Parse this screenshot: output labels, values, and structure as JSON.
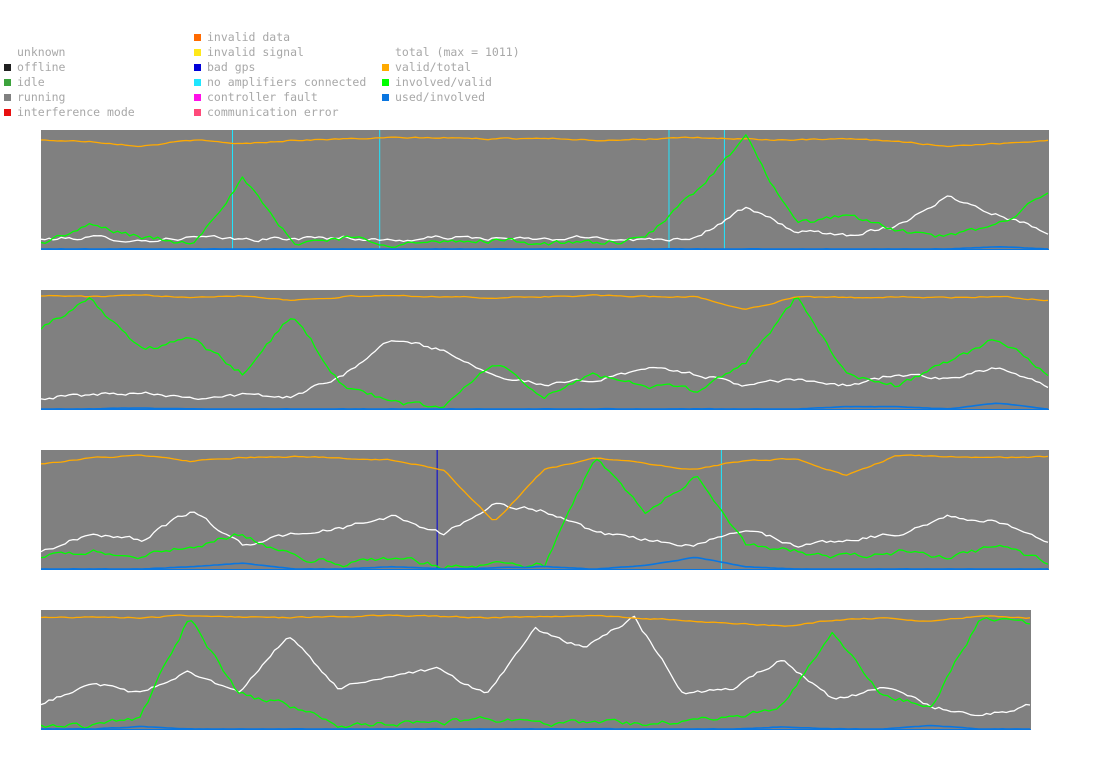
{
  "legend": {
    "status": {
      "items": [
        {
          "label": "unknown",
          "color": ""
        },
        {
          "label": "offline",
          "color": "#202020"
        },
        {
          "label": "idle",
          "color": "#3ca33c"
        },
        {
          "label": "running",
          "color": "#808080"
        },
        {
          "label": "interference mode",
          "color": "#e81010"
        }
      ]
    },
    "errors": {
      "items": [
        {
          "label": "invalid data",
          "color": "#ff6a00"
        },
        {
          "label": "invalid signal",
          "color": "#ffe81a"
        },
        {
          "label": "bad gps",
          "color": "#0000d8"
        },
        {
          "label": "no amplifiers connected",
          "color": "#1ee6ff"
        },
        {
          "label": "controller fault",
          "color": "#ff10e8"
        },
        {
          "label": "communication error",
          "color": "#ff4a7a"
        }
      ]
    },
    "lines": {
      "items": [
        {
          "label": "total (max = 1011)",
          "color": ""
        },
        {
          "label": "valid/total",
          "color": "#ffaa00"
        },
        {
          "label": "involved/valid",
          "color": "#00ff00"
        },
        {
          "label": "used/involved",
          "color": "#0a76e0"
        }
      ]
    }
  },
  "colors": {
    "running": "#808080",
    "total": "#ffffff",
    "valid_total": "#ffaa00",
    "involved_valid": "#00ff00",
    "used_involved": "#0a76e0",
    "no_amplifiers": "#1ee6ff",
    "bad_gps": "#0000d8"
  },
  "chart_data": [
    {
      "type": "line",
      "ylim": [
        0,
        1
      ],
      "grid": false,
      "x": [
        0,
        0.05,
        0.1,
        0.15,
        0.2,
        0.25,
        0.3,
        0.35,
        0.4,
        0.45,
        0.5,
        0.55,
        0.6,
        0.65,
        0.7,
        0.75,
        0.8,
        0.85,
        0.9,
        0.95,
        1.0
      ],
      "series": [
        {
          "name": "total (max = 1011)",
          "values": [
            0.08,
            0.1,
            0.07,
            0.1,
            0.08,
            0.09,
            0.1,
            0.07,
            0.1,
            0.09,
            0.08,
            0.1,
            0.08,
            0.1,
            0.35,
            0.15,
            0.12,
            0.2,
            0.45,
            0.3,
            0.15
          ]
        },
        {
          "name": "valid/total",
          "values": [
            0.93,
            0.92,
            0.88,
            0.93,
            0.9,
            0.93,
            0.94,
            0.95,
            0.95,
            0.94,
            0.95,
            0.93,
            0.94,
            0.95,
            0.94,
            0.93,
            0.94,
            0.92,
            0.88,
            0.9,
            0.93
          ]
        },
        {
          "name": "involved/valid",
          "values": [
            0.05,
            0.2,
            0.1,
            0.05,
            0.6,
            0.05,
            0.1,
            0.05,
            0.05,
            0.08,
            0.05,
            0.05,
            0.08,
            0.5,
            0.95,
            0.2,
            0.3,
            0.15,
            0.1,
            0.2,
            0.5
          ]
        },
        {
          "name": "used/involved",
          "values": [
            0,
            0,
            0,
            0,
            0,
            0,
            0,
            0,
            0,
            0,
            0,
            0,
            0,
            0,
            0,
            0,
            0,
            0,
            0,
            0.02,
            0
          ]
        }
      ],
      "events": [
        {
          "type": "no amplifiers connected",
          "x": 0.19
        },
        {
          "type": "no amplifiers connected",
          "x": 0.336
        },
        {
          "type": "no amplifiers connected",
          "x": 0.623
        },
        {
          "type": "no amplifiers connected",
          "x": 0.678
        }
      ]
    },
    {
      "type": "line",
      "ylim": [
        0,
        1
      ],
      "grid": false,
      "x": [
        0,
        0.05,
        0.1,
        0.15,
        0.2,
        0.25,
        0.3,
        0.35,
        0.4,
        0.45,
        0.5,
        0.55,
        0.6,
        0.65,
        0.7,
        0.75,
        0.8,
        0.85,
        0.9,
        0.95,
        1.0
      ],
      "series": [
        {
          "name": "total (max = 1011)",
          "values": [
            0.1,
            0.12,
            0.15,
            0.1,
            0.12,
            0.1,
            0.3,
            0.6,
            0.5,
            0.3,
            0.2,
            0.25,
            0.35,
            0.3,
            0.2,
            0.25,
            0.2,
            0.3,
            0.25,
            0.35,
            0.2
          ]
        },
        {
          "name": "valid/total",
          "values": [
            0.97,
            0.96,
            0.97,
            0.96,
            0.97,
            0.93,
            0.96,
            0.97,
            0.96,
            0.95,
            0.96,
            0.97,
            0.96,
            0.96,
            0.85,
            0.96,
            0.95,
            0.96,
            0.95,
            0.96,
            0.93
          ]
        },
        {
          "name": "involved/valid",
          "values": [
            0.7,
            0.95,
            0.5,
            0.6,
            0.3,
            0.8,
            0.2,
            0.05,
            0.02,
            0.4,
            0.1,
            0.3,
            0.2,
            0.15,
            0.4,
            0.95,
            0.3,
            0.2,
            0.4,
            0.6,
            0.3
          ]
        },
        {
          "name": "used/involved",
          "values": [
            0,
            0,
            0.01,
            0,
            0,
            0,
            0,
            0,
            0,
            0,
            0,
            0,
            0,
            0,
            0,
            0,
            0.02,
            0.02,
            0,
            0.05,
            0
          ]
        }
      ],
      "events": []
    },
    {
      "type": "line",
      "ylim": [
        0,
        1
      ],
      "grid": false,
      "x": [
        0,
        0.05,
        0.1,
        0.15,
        0.2,
        0.25,
        0.3,
        0.35,
        0.4,
        0.45,
        0.5,
        0.55,
        0.6,
        0.65,
        0.7,
        0.75,
        0.8,
        0.85,
        0.9,
        0.95,
        1.0
      ],
      "series": [
        {
          "name": "total (max = 1011)",
          "values": [
            0.15,
            0.3,
            0.25,
            0.5,
            0.2,
            0.3,
            0.35,
            0.45,
            0.3,
            0.55,
            0.5,
            0.3,
            0.25,
            0.2,
            0.35,
            0.2,
            0.25,
            0.3,
            0.45,
            0.4,
            0.25
          ]
        },
        {
          "name": "valid/total",
          "values": [
            0.9,
            0.95,
            0.97,
            0.92,
            0.95,
            0.96,
            0.95,
            0.93,
            0.85,
            0.4,
            0.85,
            0.95,
            0.9,
            0.85,
            0.93,
            0.94,
            0.8,
            0.97,
            0.96,
            0.95,
            0.96
          ]
        },
        {
          "name": "involved/valid",
          "values": [
            0.1,
            0.15,
            0.1,
            0.2,
            0.3,
            0.1,
            0.05,
            0.1,
            0.02,
            0.05,
            0.03,
            0.95,
            0.5,
            0.8,
            0.2,
            0.15,
            0.1,
            0.15,
            0.1,
            0.2,
            0.05
          ]
        },
        {
          "name": "used/involved",
          "values": [
            0,
            0,
            0,
            0.02,
            0.05,
            0,
            0,
            0.02,
            0,
            0.01,
            0.02,
            0,
            0.03,
            0.1,
            0.02,
            0,
            0,
            0,
            0,
            0,
            0
          ]
        }
      ],
      "events": [
        {
          "type": "bad gps",
          "x": 0.393
        },
        {
          "type": "no amplifiers connected",
          "x": 0.675
        }
      ]
    },
    {
      "type": "line",
      "ylim": [
        0,
        1
      ],
      "grid": false,
      "x": [
        0,
        0.05,
        0.1,
        0.15,
        0.2,
        0.25,
        0.3,
        0.35,
        0.4,
        0.45,
        0.5,
        0.55,
        0.6,
        0.65,
        0.7,
        0.75,
        0.8,
        0.85,
        0.9,
        0.95,
        1.0
      ],
      "series": [
        {
          "name": "total (max = 1011)",
          "values": [
            0.2,
            0.4,
            0.3,
            0.5,
            0.3,
            0.8,
            0.35,
            0.45,
            0.5,
            0.3,
            0.85,
            0.7,
            0.95,
            0.3,
            0.35,
            0.6,
            0.25,
            0.35,
            0.2,
            0.1,
            0.2
          ]
        },
        {
          "name": "valid/total",
          "values": [
            0.95,
            0.96,
            0.95,
            0.97,
            0.96,
            0.95,
            0.96,
            0.97,
            0.96,
            0.95,
            0.96,
            0.97,
            0.95,
            0.93,
            0.9,
            0.88,
            0.93,
            0.95,
            0.92,
            0.97,
            0.95
          ]
        },
        {
          "name": "involved/valid",
          "values": [
            0.02,
            0.03,
            0.1,
            0.95,
            0.3,
            0.2,
            0.03,
            0.05,
            0.04,
            0.1,
            0.05,
            0.05,
            0.05,
            0.06,
            0.1,
            0.2,
            0.85,
            0.3,
            0.2,
            0.95,
            0.9
          ]
        },
        {
          "name": "used/involved",
          "values": [
            0,
            0,
            0.02,
            0,
            0,
            0,
            0,
            0,
            0,
            0,
            0,
            0,
            0,
            0,
            0,
            0.02,
            0,
            0,
            0.03,
            0,
            0
          ]
        }
      ],
      "events": []
    }
  ]
}
